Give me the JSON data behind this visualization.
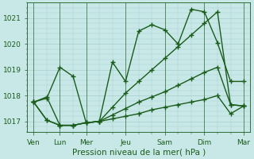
{
  "background_color": "#c8e8e8",
  "grid_color": "#b0d0d0",
  "line_color": "#1a5c1a",
  "marker": "+",
  "markersize": 4,
  "linewidth": 1.0,
  "ylim": [
    1016.6,
    1021.6
  ],
  "yticks": [
    1017,
    1018,
    1019,
    1020,
    1021
  ],
  "xlabel": "Pression niveau de la mer( hPa )",
  "xlabel_fontsize": 7.5,
  "tick_fontsize": 6.5,
  "series": [
    [
      1017.75,
      1017.9,
      1019.1,
      1018.75,
      1016.95,
      1017.0,
      1019.3,
      1018.55,
      1020.5,
      1020.75,
      1020.55,
      1020.0,
      1021.35,
      1021.25,
      1020.05,
      1018.55,
      1018.55
    ],
    [
      1017.75,
      1017.95,
      1016.85,
      1016.85,
      1016.95,
      1017.0,
      1017.55,
      1018.1,
      1018.55,
      1019.0,
      1019.45,
      1019.9,
      1020.35,
      1020.8,
      1021.25,
      1017.65,
      1017.6
    ],
    [
      1017.75,
      1017.05,
      1016.85,
      1016.85,
      1016.95,
      1017.0,
      1017.25,
      1017.5,
      1017.75,
      1017.95,
      1018.15,
      1018.4,
      1018.65,
      1018.9,
      1019.1,
      1017.65,
      1017.6
    ],
    [
      1017.75,
      1017.05,
      1016.85,
      1016.85,
      1016.95,
      1017.0,
      1017.1,
      1017.2,
      1017.3,
      1017.45,
      1017.55,
      1017.65,
      1017.75,
      1017.85,
      1018.0,
      1017.3,
      1017.6
    ]
  ],
  "n_points": 17,
  "day_positions": [
    0,
    2,
    4,
    7,
    10,
    13,
    16
  ],
  "day_labels": [
    "Ven",
    "Lun",
    "Mer",
    "Jeu",
    "Sam",
    "Dim",
    "Mar"
  ],
  "vline_positions": [
    0,
    2,
    4,
    7,
    10,
    13,
    16
  ]
}
